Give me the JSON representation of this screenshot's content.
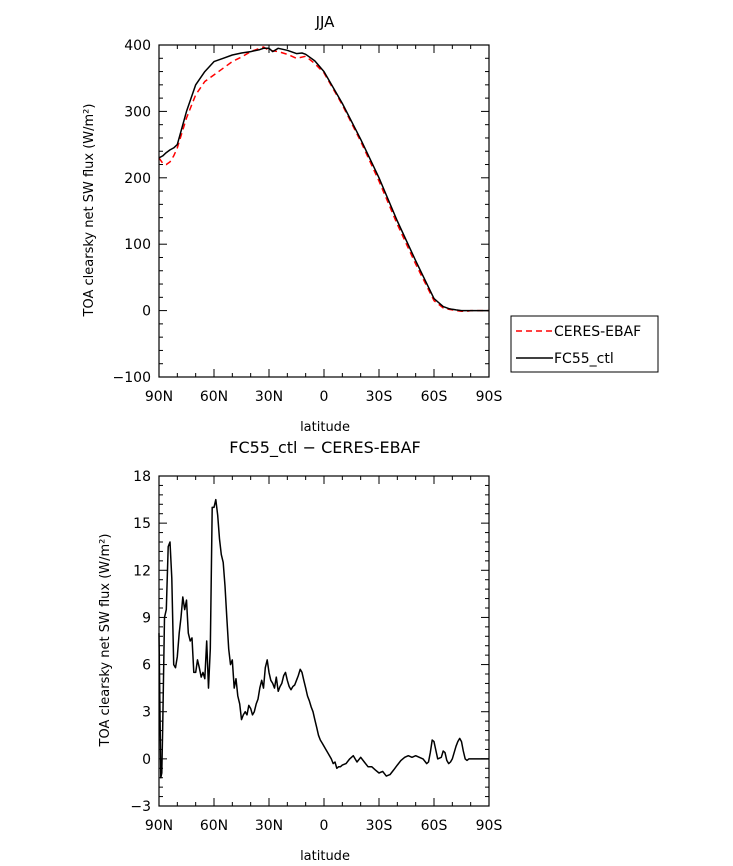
{
  "chart_data": [
    {
      "type": "line",
      "title": "JJA",
      "xlabel": "latitude",
      "ylabel": "TOA clearsky net SW flux (W/m²)",
      "xlim": [
        -90,
        90
      ],
      "ylim": [
        -100,
        400
      ],
      "xticks": [
        -90,
        -60,
        -30,
        0,
        30,
        60,
        90
      ],
      "xtick_labels": [
        "90N",
        "60N",
        "30N",
        "0",
        "30S",
        "60S",
        "90S"
      ],
      "yticks": [
        -100,
        0,
        100,
        200,
        300,
        400
      ],
      "ytick_labels": [
        "−100",
        "0",
        "100",
        "200",
        "300",
        "400"
      ],
      "grid": false,
      "legend_position": "right",
      "series": [
        {
          "name": "CERES-EBAF",
          "color": "#ff0000",
          "dash": "dashed",
          "x": [
            -90,
            -88,
            -86,
            -84,
            -82,
            -80,
            -75,
            -70,
            -65,
            -60,
            -55,
            -50,
            -45,
            -40,
            -35,
            -33,
            -30,
            -25,
            -20,
            -15,
            -10,
            -5,
            0,
            10,
            20,
            30,
            40,
            50,
            60,
            65,
            68,
            70,
            72,
            75,
            78,
            80,
            85,
            90
          ],
          "y": [
            230,
            222,
            220,
            224,
            233,
            245,
            290,
            325,
            345,
            355,
            365,
            375,
            382,
            390,
            395,
            397,
            392,
            390,
            386,
            380,
            383,
            372,
            358,
            310,
            255,
            195,
            130,
            70,
            15,
            4,
            2,
            1,
            0,
            -1,
            -1,
            0,
            0,
            0
          ]
        },
        {
          "name": "FC55_ctl",
          "color": "#000000",
          "dash": "solid",
          "x": [
            -90,
            -88,
            -86,
            -84,
            -82,
            -80,
            -75,
            -70,
            -65,
            -60,
            -55,
            -50,
            -45,
            -40,
            -35,
            -33,
            -30,
            -28,
            -25,
            -20,
            -15,
            -12,
            -10,
            -5,
            0,
            10,
            20,
            30,
            40,
            50,
            60,
            65,
            68,
            70,
            72,
            75,
            80,
            85,
            90
          ],
          "y": [
            230,
            233,
            238,
            242,
            245,
            250,
            300,
            340,
            360,
            375,
            380,
            385,
            388,
            390,
            393,
            395,
            395,
            390,
            395,
            392,
            387,
            388,
            386,
            376,
            360,
            312,
            258,
            200,
            135,
            75,
            18,
            6,
            3,
            2,
            1,
            0,
            0,
            0,
            0
          ]
        }
      ]
    },
    {
      "type": "line",
      "title": "FC55_ctl − CERES-EBAF",
      "xlabel": "latitude",
      "ylabel": "TOA clearsky net SW flux (W/m²)",
      "xlim": [
        -90,
        90
      ],
      "ylim": [
        -3,
        18
      ],
      "xticks": [
        -90,
        -60,
        -30,
        0,
        30,
        60,
        90
      ],
      "xtick_labels": [
        "90N",
        "60N",
        "30N",
        "0",
        "30S",
        "60S",
        "90S"
      ],
      "yticks": [
        -3,
        0,
        3,
        6,
        9,
        12,
        15,
        18
      ],
      "ytick_labels": [
        "−3",
        "0",
        "3",
        "6",
        "9",
        "12",
        "15",
        "18"
      ],
      "grid": false,
      "series": [
        {
          "name": "",
          "color": "#000000",
          "dash": "solid",
          "x": [
            -90,
            -89,
            -88.5,
            -88,
            -87,
            -86,
            -85,
            -84,
            -83,
            -82,
            -81,
            -80,
            -79,
            -78,
            -77,
            -76,
            -75,
            -74,
            -73,
            -72,
            -71,
            -70,
            -69,
            -68,
            -67,
            -66,
            -65,
            -64,
            -63,
            -62,
            -61,
            -60,
            -59,
            -58,
            -57,
            -56,
            -55,
            -54,
            -53,
            -52,
            -51,
            -50,
            -49,
            -48,
            -47,
            -46,
            -45,
            -44,
            -43,
            -42,
            -41,
            -40,
            -39,
            -38,
            -37,
            -36,
            -35,
            -34,
            -33,
            -32,
            -31,
            -30,
            -29,
            -28,
            -27,
            -26,
            -25,
            -24,
            -23,
            -22,
            -21,
            -20,
            -19,
            -18,
            -17,
            -16,
            -15,
            -14,
            -13,
            -12,
            -11,
            -10,
            -9,
            -8,
            -7,
            -6,
            -5,
            -4,
            -3,
            -2,
            -1,
            0,
            1,
            2,
            3,
            4,
            5,
            6,
            7,
            8,
            9,
            10,
            12,
            14,
            16,
            18,
            20,
            22,
            24,
            26,
            28,
            30,
            32,
            34,
            36,
            38,
            40,
            42,
            44,
            46,
            48,
            50,
            52,
            54,
            56,
            57,
            58,
            59,
            60,
            62,
            64,
            65,
            66,
            67,
            68,
            69,
            70,
            72,
            73,
            74,
            75,
            76,
            77,
            78,
            79,
            80,
            82,
            84,
            86,
            88,
            90
          ],
          "y": [
            8.0,
            -1.2,
            -0.9,
            2.0,
            9.0,
            9.5,
            13.5,
            13.8,
            11.5,
            6.0,
            5.8,
            6.5,
            8.0,
            9.0,
            10.3,
            9.5,
            10.1,
            8.0,
            7.5,
            7.7,
            5.5,
            5.5,
            6.3,
            5.8,
            5.2,
            5.5,
            5.1,
            7.5,
            4.5,
            7.0,
            16.0,
            16.0,
            16.5,
            15.5,
            14.0,
            13.0,
            12.5,
            11.0,
            9.0,
            7.0,
            6.0,
            6.3,
            4.5,
            5.1,
            4.0,
            3.5,
            2.5,
            2.8,
            3.0,
            2.8,
            3.4,
            3.2,
            2.8,
            3.0,
            3.5,
            3.8,
            4.5,
            5.0,
            4.5,
            5.8,
            6.3,
            5.5,
            5.0,
            4.8,
            4.5,
            5.2,
            4.3,
            4.6,
            4.8,
            5.3,
            5.5,
            5.0,
            4.6,
            4.4,
            4.6,
            4.7,
            5.0,
            5.3,
            5.7,
            5.5,
            5.0,
            4.5,
            4.0,
            3.7,
            3.3,
            3.0,
            2.5,
            2.0,
            1.5,
            1.2,
            1.0,
            0.8,
            0.6,
            0.4,
            0.2,
            0.0,
            -0.3,
            -0.2,
            -0.6,
            -0.5,
            -0.5,
            -0.4,
            -0.3,
            0.0,
            0.2,
            -0.2,
            0.1,
            -0.2,
            -0.5,
            -0.5,
            -0.7,
            -0.9,
            -0.8,
            -1.1,
            -1.0,
            -0.7,
            -0.4,
            -0.1,
            0.1,
            0.2,
            0.1,
            0.2,
            0.1,
            0.0,
            -0.3,
            -0.2,
            0.4,
            1.2,
            1.1,
            0.0,
            0.1,
            0.5,
            0.4,
            -0.1,
            -0.3,
            -0.2,
            0.0,
            0.8,
            1.1,
            1.3,
            1.1,
            0.5,
            0.0,
            -0.1,
            0.0,
            0.0,
            0.0,
            0.0,
            0.0,
            0.0,
            0.0
          ]
        }
      ]
    }
  ]
}
